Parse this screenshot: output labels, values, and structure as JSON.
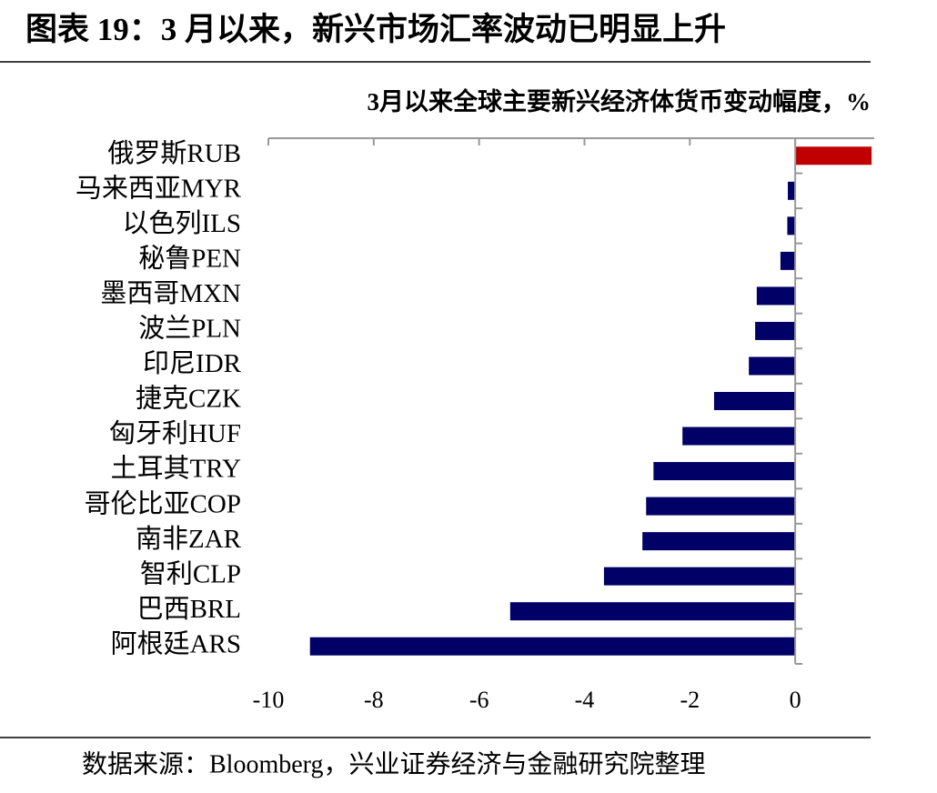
{
  "chart_data": {
    "type": "barh",
    "title": "图表 19：3 月以来，新兴市场汇率波动已明显上升",
    "subtitle": "3月以来全球主要新兴经济体货币变动幅度，%",
    "source": "数据来源：Bloomberg，兴业证券经济与金融研究院整理",
    "categories": [
      "俄罗斯RUB",
      "马来西亚MYR",
      "以色列ILS",
      "秘鲁PEN",
      "墨西哥MXN",
      "波兰PLN",
      "印尼IDR",
      "捷克CZK",
      "匈牙利HUF",
      "土耳其TRY",
      "哥伦比亚COP",
      "南非ZAR",
      "智利CLP",
      "巴西BRL",
      "阿根廷ARS"
    ],
    "values": [
      1.45,
      -0.14,
      -0.15,
      -0.28,
      -0.73,
      -0.76,
      -0.88,
      -1.54,
      -2.14,
      -2.69,
      -2.83,
      -2.9,
      -3.63,
      -5.41,
      -9.21
    ],
    "colors": [
      "#c00000",
      "#000066",
      "#000066",
      "#000066",
      "#000066",
      "#000066",
      "#000066",
      "#000066",
      "#000066",
      "#000066",
      "#000066",
      "#000066",
      "#000066",
      "#000066",
      "#000066"
    ],
    "xlim": [
      -10,
      1.5
    ],
    "xticks": [
      -10,
      -8,
      -6,
      -4,
      -2,
      0
    ]
  }
}
